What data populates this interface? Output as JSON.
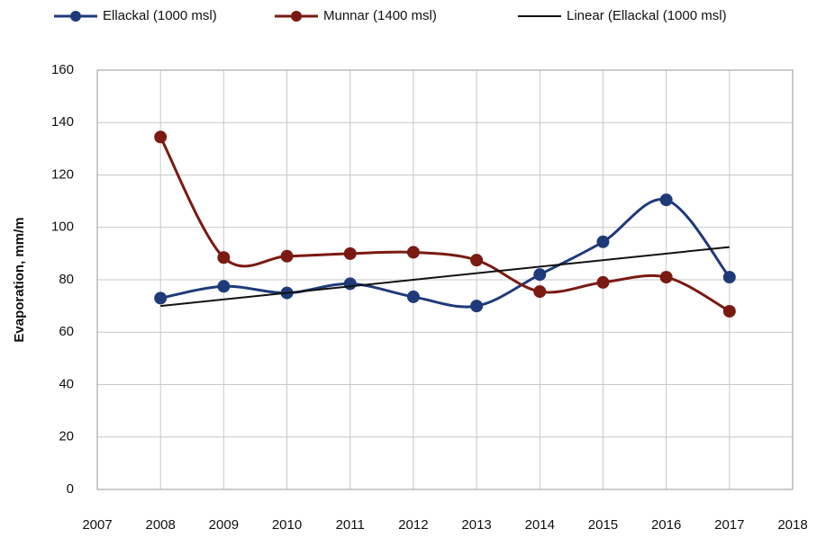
{
  "chart_data": {
    "type": "line",
    "smooth": true,
    "grid": true,
    "y_label": "Evaporation, mm/m",
    "x": [
      2008,
      2009,
      2010,
      2011,
      2012,
      2013,
      2014,
      2015,
      2016,
      2017
    ],
    "series": [
      {
        "name": "Ellackal (1000 msl)",
        "color": "#1f3a7a",
        "marker": true,
        "values": [
          73,
          77.5,
          75,
          78.5,
          73.5,
          70,
          82,
          94.5,
          110.5,
          81
        ]
      },
      {
        "name": "Munnar (1400 msl)",
        "color": "#7a1a12",
        "marker": true,
        "values": [
          134.5,
          88.5,
          89,
          90,
          90.5,
          87.5,
          75.5,
          79,
          81,
          68
        ]
      },
      {
        "name": "Linear (Ellackal (1000 msl)",
        "color": "#111111",
        "marker": false,
        "smooth": false,
        "x": [
          2008,
          2017
        ],
        "values": [
          70,
          92.5
        ]
      }
    ],
    "xlim": [
      2007,
      2018
    ],
    "xticks": [
      2007,
      2008,
      2009,
      2010,
      2011,
      2012,
      2013,
      2014,
      2015,
      2016,
      2017,
      2018
    ],
    "ylim": [
      0,
      160
    ],
    "yticks": [
      0,
      20,
      40,
      60,
      80,
      100,
      120,
      140,
      160
    ]
  }
}
